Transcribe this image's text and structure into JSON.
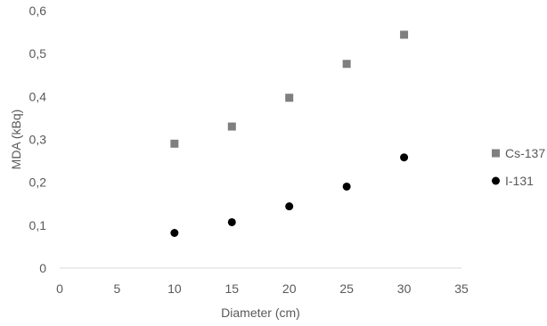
{
  "chart_data": {
    "type": "scatter",
    "xlabel": "Diameter (cm)",
    "ylabel": "MDA (kBq)",
    "xlim": [
      0,
      35
    ],
    "ylim": [
      0,
      0.6
    ],
    "xticks": [
      0,
      5,
      10,
      15,
      20,
      25,
      30,
      35
    ],
    "xtick_labels": [
      "0",
      "5",
      "10",
      "15",
      "20",
      "25",
      "30",
      "35"
    ],
    "yticks": [
      0,
      0.1,
      0.2,
      0.3,
      0.4,
      0.5,
      0.6
    ],
    "ytick_labels": [
      "0",
      "0,1",
      "0,2",
      "0,3",
      "0,4",
      "0,5",
      "0,6"
    ],
    "grid": false,
    "legend_position": "right",
    "series": [
      {
        "name": "Cs-137",
        "marker": "square",
        "color": "#7f7f7f",
        "points": [
          {
            "x": 10,
            "y": 0.29
          },
          {
            "x": 15,
            "y": 0.33
          },
          {
            "x": 20,
            "y": 0.397
          },
          {
            "x": 25,
            "y": 0.476
          },
          {
            "x": 30,
            "y": 0.544
          }
        ]
      },
      {
        "name": "I-131",
        "marker": "circle",
        "color": "#000000",
        "points": [
          {
            "x": 10,
            "y": 0.082
          },
          {
            "x": 15,
            "y": 0.107
          },
          {
            "x": 20,
            "y": 0.144
          },
          {
            "x": 25,
            "y": 0.19
          },
          {
            "x": 30,
            "y": 0.258
          }
        ]
      }
    ]
  }
}
